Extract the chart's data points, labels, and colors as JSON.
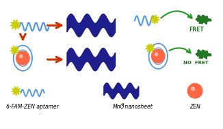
{
  "bg_color": "#ffffff",
  "dark_blue": "#1E1E8C",
  "light_blue": "#5599DD",
  "orange_arrow": "#CC3300",
  "red_orange": "#FF6644",
  "yellow_star": "#CCCC00",
  "green_blob": "#227722",
  "green_curve": "#229922",
  "label_6fam": "6-FAM-ZEN aptamer",
  "label_mno2": "MnO",
  "label_mno2_sub": "2",
  "label_mno2_rest": " nanosheet",
  "label_zen": "ZEN",
  "fret_text": "FRET",
  "no_fret_text": "NO  FRET",
  "label_fontsize": 5.5,
  "label_italic": true
}
